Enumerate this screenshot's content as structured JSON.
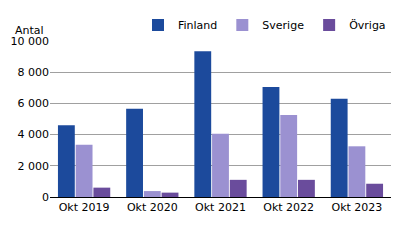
{
  "chart_data": {
    "type": "bar",
    "ylabel": "Antal",
    "categories": [
      "Okt 2019",
      "Okt 2020",
      "Okt 2021",
      "Okt 2022",
      "Okt 2023"
    ],
    "series": [
      {
        "name": "Finland",
        "color": "#1c4a9c",
        "values": [
          4600,
          5650,
          9350,
          7050,
          6300
        ]
      },
      {
        "name": "Sverige",
        "color": "#9b91d1",
        "values": [
          3350,
          380,
          4050,
          5250,
          3250
        ]
      },
      {
        "name": "Övriga",
        "color": "#6a4c9c",
        "values": [
          600,
          280,
          1100,
          1100,
          850
        ]
      }
    ],
    "ylim": [
      0,
      10000
    ],
    "yticks": [
      0,
      {
        "value": 2000,
        "label": "2 000"
      },
      {
        "value": 4000,
        "label": "4 000"
      },
      {
        "value": 6000,
        "label": "6 000"
      },
      {
        "value": 8000,
        "label": "8 000"
      },
      {
        "value": 10000,
        "label": "10 000"
      }
    ],
    "grid": true,
    "legend": "top right"
  }
}
